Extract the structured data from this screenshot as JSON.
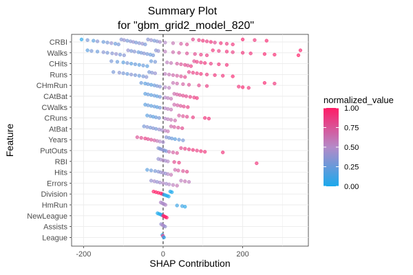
{
  "chart_data": {
    "type": "scatter",
    "title_line1": "Summary Plot",
    "title_line2": "for \"gbm_grid2_model_820\"",
    "xlabel": "SHAP Contribution",
    "ylabel": "Feature",
    "xlim": [
      -230,
      365
    ],
    "x_ticks": [
      -200,
      0,
      200
    ],
    "x_tick_labels": [
      "-200",
      "0",
      "200"
    ],
    "reference_line_x": 0,
    "grid": true,
    "legend": {
      "title": "normalized_value",
      "position": "right",
      "ticks": [
        0,
        0.25,
        0.5,
        0.75,
        1
      ],
      "tick_labels": [
        "0.00",
        "0.25",
        "0.50",
        "0.75",
        "1.00"
      ],
      "color_low": "#1ba9ec",
      "color_mid": "#b48ac8",
      "color_high": "#ff1c66"
    },
    "features": [
      {
        "name": "CRBI",
        "points": [
          [
            -205,
            0.05
          ],
          [
            -190,
            0.3
          ],
          [
            -175,
            0.2
          ],
          [
            -165,
            0.35
          ],
          [
            -150,
            0.25
          ],
          [
            -140,
            0.3
          ],
          [
            -130,
            0.4
          ],
          [
            -120,
            0.25
          ],
          [
            -112,
            0.3
          ],
          [
            -105,
            0.35
          ],
          [
            -98,
            0.4
          ],
          [
            -90,
            0.3
          ],
          [
            -82,
            0.35
          ],
          [
            -75,
            0.4
          ],
          [
            -68,
            0.3
          ],
          [
            -60,
            0.35
          ],
          [
            -52,
            0.4
          ],
          [
            -45,
            0.3
          ],
          [
            -38,
            0.35
          ],
          [
            -30,
            0.4
          ],
          [
            -22,
            0.3
          ],
          [
            -15,
            0.35
          ],
          [
            -8,
            0.45
          ],
          [
            5,
            0.5
          ],
          [
            25,
            0.6
          ],
          [
            45,
            0.7
          ],
          [
            60,
            0.75
          ],
          [
            75,
            0.8
          ],
          [
            90,
            0.85
          ],
          [
            100,
            0.9
          ],
          [
            110,
            0.85
          ],
          [
            120,
            0.9
          ],
          [
            130,
            0.8
          ],
          [
            145,
            0.9
          ],
          [
            160,
            0.85
          ],
          [
            175,
            0.9
          ],
          [
            200,
            0.95
          ],
          [
            230,
            0.9
          ],
          [
            260,
            0.95
          ]
        ]
      },
      {
        "name": "Walks",
        "points": [
          [
            -190,
            0.2
          ],
          [
            -180,
            0.3
          ],
          [
            -165,
            0.25
          ],
          [
            -150,
            0.35
          ],
          [
            -140,
            0.3
          ],
          [
            -128,
            0.35
          ],
          [
            -118,
            0.4
          ],
          [
            -108,
            0.3
          ],
          [
            -98,
            0.35
          ],
          [
            -88,
            0.4
          ],
          [
            -80,
            0.3
          ],
          [
            -72,
            0.35
          ],
          [
            -62,
            0.25
          ],
          [
            -55,
            0.3
          ],
          [
            -48,
            0.35
          ],
          [
            -40,
            0.3
          ],
          [
            -32,
            0.25
          ],
          [
            -25,
            0.3
          ],
          [
            -18,
            0.35
          ],
          [
            -12,
            0.4
          ],
          [
            5,
            0.55
          ],
          [
            25,
            0.65
          ],
          [
            40,
            0.7
          ],
          [
            60,
            0.75
          ],
          [
            80,
            0.8
          ],
          [
            95,
            0.85
          ],
          [
            110,
            0.85
          ],
          [
            125,
            0.9
          ],
          [
            140,
            0.85
          ],
          [
            160,
            0.9
          ],
          [
            175,
            0.85
          ],
          [
            200,
            0.9
          ],
          [
            220,
            0.9
          ],
          [
            255,
            0.95
          ],
          [
            280,
            0.95
          ],
          [
            340,
            1.0
          ],
          [
            345,
            0.95
          ]
        ]
      },
      {
        "name": "CHits",
        "points": [
          [
            -130,
            0.3
          ],
          [
            -115,
            0.25
          ],
          [
            -100,
            0.2
          ],
          [
            -90,
            0.3
          ],
          [
            -80,
            0.2
          ],
          [
            -70,
            0.25
          ],
          [
            -60,
            0.2
          ],
          [
            -50,
            0.25
          ],
          [
            -40,
            0.2
          ],
          [
            -30,
            0.25
          ],
          [
            -20,
            0.3
          ],
          [
            10,
            0.55
          ],
          [
            20,
            0.6
          ],
          [
            35,
            0.7
          ],
          [
            45,
            0.75
          ],
          [
            55,
            0.8
          ],
          [
            62,
            0.75
          ],
          [
            70,
            0.85
          ],
          [
            78,
            0.8
          ],
          [
            85,
            0.85
          ],
          [
            95,
            0.85
          ],
          [
            105,
            0.9
          ],
          [
            120,
            0.85
          ],
          [
            140,
            0.9
          ],
          [
            160,
            0.9
          ]
        ]
      },
      {
        "name": "Runs",
        "points": [
          [
            -125,
            0.3
          ],
          [
            -110,
            0.35
          ],
          [
            -100,
            0.3
          ],
          [
            -90,
            0.25
          ],
          [
            -80,
            0.35
          ],
          [
            -70,
            0.3
          ],
          [
            -60,
            0.25
          ],
          [
            -50,
            0.3
          ],
          [
            -42,
            0.35
          ],
          [
            -35,
            0.3
          ],
          [
            -28,
            0.35
          ],
          [
            -20,
            0.4
          ],
          [
            5,
            0.55
          ],
          [
            15,
            0.6
          ],
          [
            25,
            0.65
          ],
          [
            35,
            0.7
          ],
          [
            45,
            0.75
          ],
          [
            55,
            0.8
          ],
          [
            65,
            0.8
          ],
          [
            75,
            0.85
          ],
          [
            85,
            0.85
          ],
          [
            95,
            0.9
          ],
          [
            110,
            0.85
          ],
          [
            130,
            0.9
          ],
          [
            150,
            0.9
          ],
          [
            175,
            0.95
          ]
        ]
      },
      {
        "name": "CHmRun",
        "points": [
          [
            -55,
            0.25
          ],
          [
            -45,
            0.2
          ],
          [
            -38,
            0.25
          ],
          [
            -30,
            0.2
          ],
          [
            -22,
            0.25
          ],
          [
            -15,
            0.3
          ],
          [
            -8,
            0.35
          ],
          [
            5,
            0.5
          ],
          [
            15,
            0.55
          ],
          [
            25,
            0.6
          ],
          [
            35,
            0.65
          ],
          [
            50,
            0.7
          ],
          [
            65,
            0.75
          ],
          [
            90,
            0.8
          ],
          [
            110,
            0.85
          ],
          [
            190,
            0.9
          ],
          [
            200,
            0.95
          ],
          [
            215,
            0.9
          ],
          [
            255,
            0.95
          ],
          [
            280,
            0.9
          ]
        ]
      },
      {
        "name": "CAtBat",
        "points": [
          [
            -45,
            0.2
          ],
          [
            -38,
            0.25
          ],
          [
            -30,
            0.2
          ],
          [
            -22,
            0.25
          ],
          [
            -15,
            0.2
          ],
          [
            -8,
            0.3
          ],
          [
            5,
            0.5
          ],
          [
            12,
            0.55
          ],
          [
            20,
            0.6
          ],
          [
            28,
            0.65
          ],
          [
            35,
            0.7
          ],
          [
            42,
            0.75
          ],
          [
            50,
            0.8
          ],
          [
            58,
            0.8
          ],
          [
            68,
            0.85
          ],
          [
            78,
            0.85
          ],
          [
            85,
            0.9
          ]
        ]
      },
      {
        "name": "CWalks",
        "points": [
          [
            -45,
            0.2
          ],
          [
            -38,
            0.25
          ],
          [
            -30,
            0.2
          ],
          [
            -22,
            0.25
          ],
          [
            -15,
            0.2
          ],
          [
            -8,
            0.3
          ],
          [
            5,
            0.5
          ],
          [
            12,
            0.55
          ],
          [
            20,
            0.6
          ],
          [
            28,
            0.65
          ],
          [
            36,
            0.7
          ],
          [
            44,
            0.75
          ],
          [
            52,
            0.8
          ],
          [
            62,
            0.85
          ]
        ]
      },
      {
        "name": "CRuns",
        "points": [
          [
            -40,
            0.2
          ],
          [
            -32,
            0.25
          ],
          [
            -25,
            0.2
          ],
          [
            -18,
            0.25
          ],
          [
            -10,
            0.3
          ],
          [
            5,
            0.5
          ],
          [
            12,
            0.55
          ],
          [
            20,
            0.6
          ],
          [
            30,
            0.65
          ],
          [
            40,
            0.7
          ],
          [
            50,
            0.75
          ],
          [
            60,
            0.8
          ],
          [
            75,
            0.85
          ],
          [
            105,
            0.9
          ],
          [
            115,
            0.9
          ]
        ]
      },
      {
        "name": "AtBat",
        "points": [
          [
            -48,
            0.3
          ],
          [
            -40,
            0.35
          ],
          [
            -32,
            0.3
          ],
          [
            -25,
            0.35
          ],
          [
            -18,
            0.3
          ],
          [
            -10,
            0.4
          ],
          [
            -3,
            0.45
          ],
          [
            5,
            0.55
          ],
          [
            12,
            0.6
          ],
          [
            20,
            0.65
          ],
          [
            28,
            0.7
          ],
          [
            38,
            0.75
          ],
          [
            48,
            0.8
          ]
        ]
      },
      {
        "name": "Years",
        "points": [
          [
            -65,
            0.75
          ],
          [
            -55,
            0.8
          ],
          [
            -45,
            0.85
          ],
          [
            -38,
            0.8
          ],
          [
            -30,
            0.75
          ],
          [
            -22,
            0.7
          ],
          [
            -15,
            0.6
          ],
          [
            -8,
            0.5
          ],
          [
            0,
            0.45
          ],
          [
            8,
            0.35
          ],
          [
            15,
            0.3
          ],
          [
            22,
            0.25
          ],
          [
            30,
            0.2
          ],
          [
            40,
            0.25
          ],
          [
            50,
            0.3
          ]
        ]
      },
      {
        "name": "PutOuts",
        "points": [
          [
            -12,
            0.35
          ],
          [
            -8,
            0.3
          ],
          [
            -4,
            0.35
          ],
          [
            0,
            0.4
          ],
          [
            4,
            0.3
          ],
          [
            8,
            0.35
          ],
          [
            15,
            0.6
          ],
          [
            25,
            0.7
          ],
          [
            35,
            0.75
          ],
          [
            45,
            0.8
          ],
          [
            55,
            0.85
          ],
          [
            65,
            0.85
          ],
          [
            75,
            0.9
          ],
          [
            85,
            0.85
          ],
          [
            95,
            0.9
          ],
          [
            105,
            0.9
          ],
          [
            150,
            0.9
          ]
        ]
      },
      {
        "name": "RBI",
        "points": [
          [
            -12,
            0.4
          ],
          [
            -6,
            0.45
          ],
          [
            0,
            0.5
          ],
          [
            6,
            0.45
          ],
          [
            12,
            0.5
          ],
          [
            28,
            0.8
          ],
          [
            40,
            0.85
          ],
          [
            235,
            0.9
          ]
        ]
      },
      {
        "name": "Hits",
        "points": [
          [
            -40,
            0.2
          ],
          [
            -30,
            0.25
          ],
          [
            -20,
            0.3
          ],
          [
            -12,
            0.35
          ],
          [
            -6,
            0.4
          ],
          [
            0,
            0.45
          ],
          [
            6,
            0.4
          ],
          [
            12,
            0.5
          ],
          [
            20,
            0.6
          ],
          [
            30,
            0.65
          ],
          [
            38,
            0.7
          ],
          [
            50,
            0.75
          ],
          [
            60,
            0.8
          ]
        ]
      },
      {
        "name": "Errors",
        "points": [
          [
            -30,
            0.4
          ],
          [
            -22,
            0.45
          ],
          [
            -15,
            0.4
          ],
          [
            -8,
            0.45
          ],
          [
            0,
            0.5
          ],
          [
            8,
            0.45
          ],
          [
            15,
            0.5
          ],
          [
            25,
            0.55
          ],
          [
            35,
            0.6
          ],
          [
            45,
            0.55
          ],
          [
            55,
            0.6
          ],
          [
            65,
            0.55
          ]
        ]
      },
      {
        "name": "Division",
        "points": [
          [
            -24,
            1.0
          ],
          [
            -18,
            1.0
          ],
          [
            -12,
            1.0
          ],
          [
            -6,
            1.0
          ],
          [
            -2,
            1.0
          ],
          [
            2,
            0.0
          ],
          [
            6,
            0.0
          ],
          [
            10,
            0.0
          ],
          [
            14,
            0.0
          ],
          [
            18,
            0.0
          ],
          [
            22,
            0.0
          ]
        ]
      },
      {
        "name": "HmRun",
        "points": [
          [
            -6,
            0.5
          ],
          [
            -3,
            0.45
          ],
          [
            0,
            0.5
          ],
          [
            3,
            0.45
          ],
          [
            6,
            0.5
          ],
          [
            35,
            0.1
          ],
          [
            48,
            0.1
          ],
          [
            55,
            0.05
          ]
        ]
      },
      {
        "name": "NewLeague",
        "points": [
          [
            -14,
            0.0
          ],
          [
            -10,
            0.0
          ],
          [
            -6,
            0.0
          ],
          [
            -3,
            0.0
          ],
          [
            0,
            1.0
          ],
          [
            3,
            1.0
          ],
          [
            6,
            1.0
          ],
          [
            9,
            1.0
          ]
        ]
      },
      {
        "name": "Assists",
        "points": [
          [
            -5,
            0.4
          ],
          [
            -2,
            0.45
          ],
          [
            0,
            0.5
          ],
          [
            2,
            0.45
          ],
          [
            5,
            0.4
          ]
        ]
      },
      {
        "name": "League",
        "points": [
          [
            -2,
            0.0
          ],
          [
            -1,
            0.5
          ],
          [
            0,
            1.0
          ],
          [
            1,
            0.5
          ],
          [
            2,
            0.0
          ]
        ]
      }
    ]
  }
}
